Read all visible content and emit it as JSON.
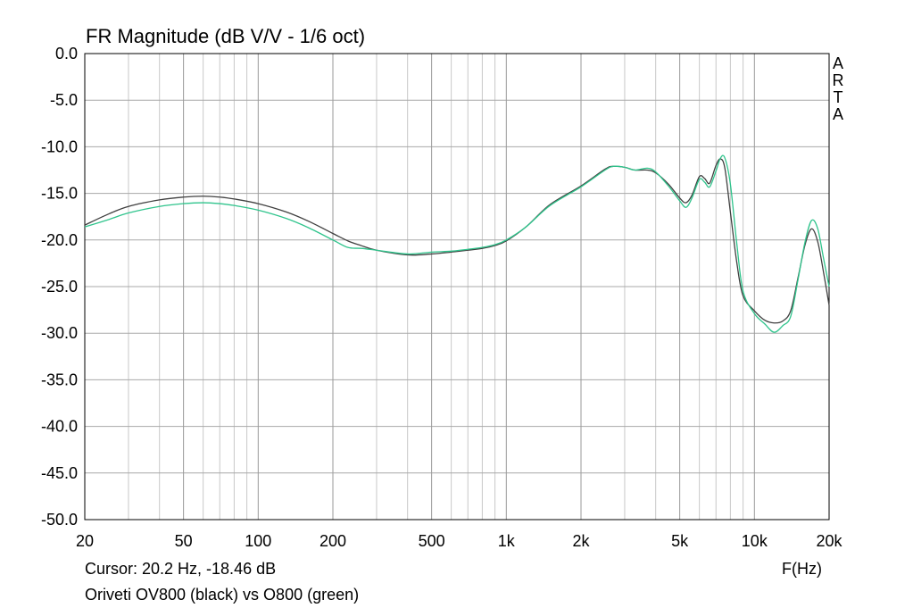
{
  "title": "FR Magnitude (dB V/V - 1/6 oct)",
  "cursor_readout": "Cursor: 20.2 Hz, -18.46 dB",
  "caption": "Oriveti OV800 (black) vs O800 (green)",
  "x_unit_label": "F(Hz)",
  "brand_letters": [
    "A",
    "R",
    "T",
    "A"
  ],
  "colors": {
    "black_series": "#404040",
    "green_series": "#2fc48c",
    "grid": "#c8c8c8",
    "frame": "#000000"
  },
  "chart_data": {
    "type": "line",
    "title": "FR Magnitude (dB V/V - 1/6 oct)",
    "xlabel": "F(Hz)",
    "ylabel": "",
    "xscale": "log",
    "xlim": [
      20,
      20000
    ],
    "ylim": [
      -50,
      0
    ],
    "grid": true,
    "x_tick_labels": [
      "20",
      "50",
      "100",
      "200",
      "500",
      "1k",
      "2k",
      "5k",
      "10k",
      "20k"
    ],
    "x_tick_values": [
      20,
      50,
      100,
      200,
      500,
      1000,
      2000,
      5000,
      10000,
      20000
    ],
    "y_tick_labels": [
      "0.0",
      "-5.0",
      "-10.0",
      "-15.0",
      "-20.0",
      "-25.0",
      "-30.0",
      "-35.0",
      "-40.0",
      "-45.0",
      "-50.0"
    ],
    "y_tick_values": [
      0,
      -5,
      -10,
      -15,
      -20,
      -25,
      -30,
      -35,
      -40,
      -45,
      -50
    ],
    "series": [
      {
        "name": "Oriveti OV800 (black)",
        "color": "#404040",
        "points": [
          [
            20,
            -18.4
          ],
          [
            25,
            -17.2
          ],
          [
            30,
            -16.4
          ],
          [
            40,
            -15.7
          ],
          [
            50,
            -15.4
          ],
          [
            60,
            -15.3
          ],
          [
            70,
            -15.4
          ],
          [
            80,
            -15.6
          ],
          [
            100,
            -16.1
          ],
          [
            130,
            -17.0
          ],
          [
            160,
            -18.0
          ],
          [
            200,
            -19.3
          ],
          [
            230,
            -20.1
          ],
          [
            260,
            -20.6
          ],
          [
            300,
            -21.1
          ],
          [
            400,
            -21.6
          ],
          [
            500,
            -21.5
          ],
          [
            600,
            -21.3
          ],
          [
            700,
            -21.1
          ],
          [
            800,
            -20.9
          ],
          [
            900,
            -20.6
          ],
          [
            1000,
            -20.1
          ],
          [
            1200,
            -18.6
          ],
          [
            1500,
            -16.2
          ],
          [
            2000,
            -14.2
          ],
          [
            2500,
            -12.4
          ],
          [
            2700,
            -12.1
          ],
          [
            3000,
            -12.2
          ],
          [
            3300,
            -12.5
          ],
          [
            3700,
            -12.5
          ],
          [
            4000,
            -12.8
          ],
          [
            4500,
            -14.0
          ],
          [
            5000,
            -15.5
          ],
          [
            5300,
            -16.0
          ],
          [
            5600,
            -15.2
          ],
          [
            6000,
            -13.2
          ],
          [
            6300,
            -13.4
          ],
          [
            6600,
            -13.9
          ],
          [
            7000,
            -12.0
          ],
          [
            7300,
            -11.3
          ],
          [
            7600,
            -12.3
          ],
          [
            8000,
            -17.0
          ],
          [
            8500,
            -22.5
          ],
          [
            9000,
            -26.0
          ],
          [
            10000,
            -27.6
          ],
          [
            11000,
            -28.6
          ],
          [
            12000,
            -28.9
          ],
          [
            13000,
            -28.7
          ],
          [
            14000,
            -27.6
          ],
          [
            15000,
            -24.0
          ],
          [
            16000,
            -20.5
          ],
          [
            17000,
            -18.8
          ],
          [
            18000,
            -20.2
          ],
          [
            19000,
            -23.5
          ],
          [
            20000,
            -27.0
          ]
        ]
      },
      {
        "name": "O800 (green)",
        "color": "#2fc48c",
        "points": [
          [
            20,
            -18.6
          ],
          [
            25,
            -17.8
          ],
          [
            30,
            -17.1
          ],
          [
            40,
            -16.4
          ],
          [
            50,
            -16.1
          ],
          [
            60,
            -16.0
          ],
          [
            70,
            -16.1
          ],
          [
            80,
            -16.3
          ],
          [
            100,
            -16.8
          ],
          [
            130,
            -17.7
          ],
          [
            160,
            -18.7
          ],
          [
            200,
            -20.0
          ],
          [
            230,
            -20.8
          ],
          [
            260,
            -20.9
          ],
          [
            300,
            -21.1
          ],
          [
            400,
            -21.5
          ],
          [
            500,
            -21.3
          ],
          [
            600,
            -21.2
          ],
          [
            700,
            -21.0
          ],
          [
            800,
            -20.8
          ],
          [
            900,
            -20.5
          ],
          [
            1000,
            -20.0
          ],
          [
            1200,
            -18.6
          ],
          [
            1500,
            -16.3
          ],
          [
            2000,
            -14.3
          ],
          [
            2500,
            -12.5
          ],
          [
            2700,
            -12.1
          ],
          [
            3000,
            -12.2
          ],
          [
            3300,
            -12.5
          ],
          [
            3700,
            -12.3
          ],
          [
            4000,
            -12.7
          ],
          [
            4500,
            -14.2
          ],
          [
            5000,
            -15.8
          ],
          [
            5300,
            -16.5
          ],
          [
            5600,
            -15.5
          ],
          [
            6000,
            -13.5
          ],
          [
            6300,
            -13.8
          ],
          [
            6600,
            -14.3
          ],
          [
            7000,
            -12.6
          ],
          [
            7300,
            -11.2
          ],
          [
            7600,
            -11.2
          ],
          [
            8000,
            -14.0
          ],
          [
            8500,
            -20.5
          ],
          [
            9000,
            -25.5
          ],
          [
            10000,
            -27.9
          ],
          [
            11000,
            -29.0
          ],
          [
            12000,
            -29.9
          ],
          [
            13000,
            -29.2
          ],
          [
            14000,
            -28.2
          ],
          [
            15000,
            -24.2
          ],
          [
            16000,
            -20.2
          ],
          [
            17000,
            -17.9
          ],
          [
            18000,
            -18.8
          ],
          [
            19000,
            -22.0
          ],
          [
            20000,
            -25.0
          ]
        ]
      }
    ]
  }
}
